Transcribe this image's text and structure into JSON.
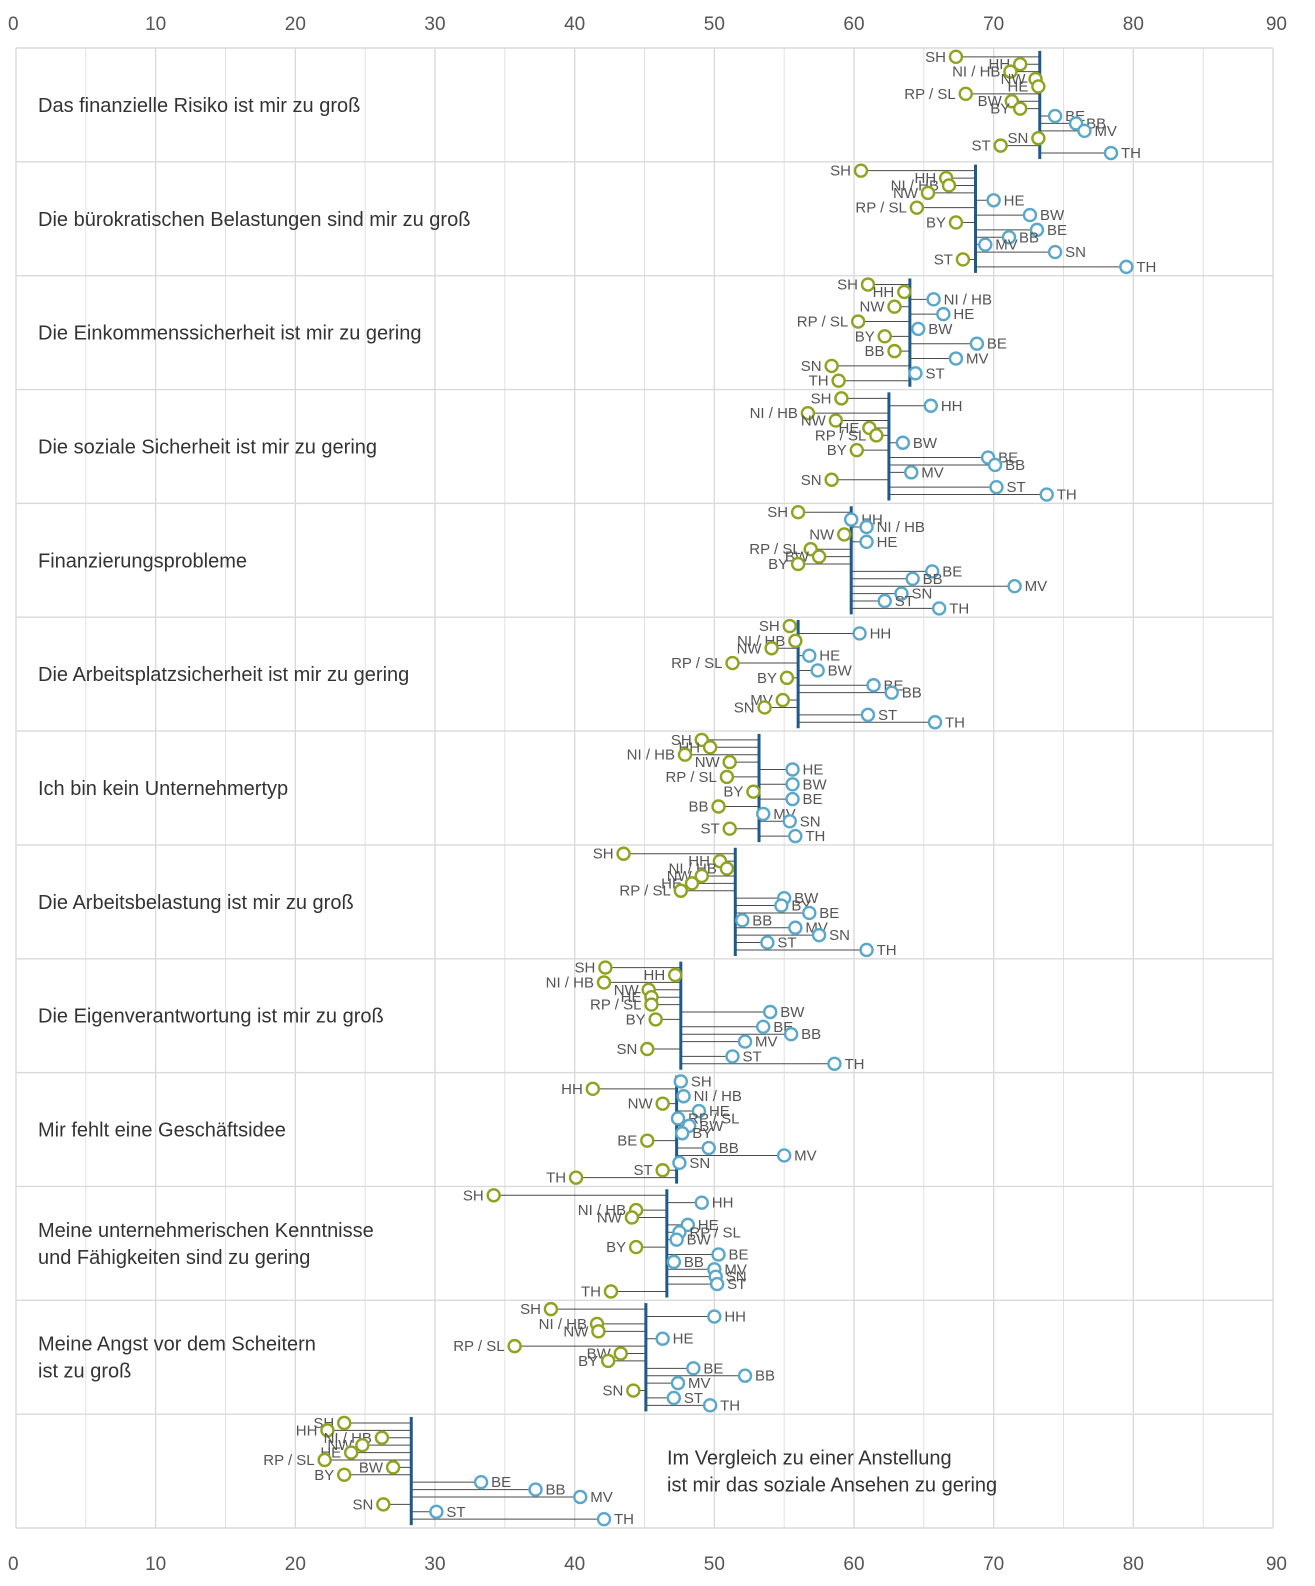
{
  "chart_data": {
    "type": "scatter",
    "xlim": [
      0,
      90
    ],
    "x_ticks": [
      0,
      10,
      20,
      30,
      40,
      50,
      60,
      70,
      80,
      90
    ],
    "grid": true,
    "colors": {
      "below": "#8FA31E",
      "above": "#5AA7CC",
      "mean_line": "#1E5A8A",
      "stems": "#4A4A4A",
      "grid": "#DADADA"
    },
    "groups": [
      {
        "label": [
          "Das finanzielle Risiko ist mir zu groß"
        ],
        "mean": 73.3,
        "points": [
          {
            "state": "SH",
            "value": 67.3
          },
          {
            "state": "HH",
            "value": 71.9
          },
          {
            "state": "NI / HB",
            "value": 71.2
          },
          {
            "state": "NW",
            "value": 73.0
          },
          {
            "state": "HE",
            "value": 73.2
          },
          {
            "state": "RP / SL",
            "value": 68.0
          },
          {
            "state": "BW",
            "value": 71.3
          },
          {
            "state": "BY",
            "value": 71.9
          },
          {
            "state": "BE",
            "value": 74.4
          },
          {
            "state": "BB",
            "value": 75.9
          },
          {
            "state": "MV",
            "value": 76.5
          },
          {
            "state": "SN",
            "value": 73.2
          },
          {
            "state": "ST",
            "value": 70.5
          },
          {
            "state": "TH",
            "value": 78.4
          }
        ]
      },
      {
        "label": [
          "Die bürokratischen Belastungen sind mir zu groß"
        ],
        "mean": 68.7,
        "points": [
          {
            "state": "SH",
            "value": 60.5
          },
          {
            "state": "HH",
            "value": 66.6
          },
          {
            "state": "NI / HB",
            "value": 66.8
          },
          {
            "state": "NW",
            "value": 65.3
          },
          {
            "state": "HE",
            "value": 70.0
          },
          {
            "state": "RP / SL",
            "value": 64.5
          },
          {
            "state": "BW",
            "value": 72.6
          },
          {
            "state": "BY",
            "value": 67.3
          },
          {
            "state": "BE",
            "value": 73.1
          },
          {
            "state": "BB",
            "value": 71.1
          },
          {
            "state": "MV",
            "value": 69.4
          },
          {
            "state": "SN",
            "value": 74.4
          },
          {
            "state": "ST",
            "value": 67.8
          },
          {
            "state": "TH",
            "value": 79.5
          }
        ]
      },
      {
        "label": [
          "Die Einkommenssicherheit ist mir zu gering"
        ],
        "mean": 64.0,
        "points": [
          {
            "state": "SH",
            "value": 61.0
          },
          {
            "state": "HH",
            "value": 63.6
          },
          {
            "state": "NI / HB",
            "value": 65.7
          },
          {
            "state": "NW",
            "value": 62.9
          },
          {
            "state": "HE",
            "value": 66.4
          },
          {
            "state": "RP / SL",
            "value": 60.3
          },
          {
            "state": "BW",
            "value": 64.6
          },
          {
            "state": "BY",
            "value": 62.2
          },
          {
            "state": "BE",
            "value": 68.8
          },
          {
            "state": "BB",
            "value": 62.9
          },
          {
            "state": "MV",
            "value": 67.3
          },
          {
            "state": "SN",
            "value": 58.4
          },
          {
            "state": "ST",
            "value": 64.4
          },
          {
            "state": "TH",
            "value": 58.9
          }
        ]
      },
      {
        "label": [
          "Die soziale Sicherheit ist mir zu gering"
        ],
        "mean": 62.5,
        "points": [
          {
            "state": "SH",
            "value": 59.1
          },
          {
            "state": "HH",
            "value": 65.5
          },
          {
            "state": "NI / HB",
            "value": 56.7
          },
          {
            "state": "NW",
            "value": 58.7
          },
          {
            "state": "HE",
            "value": 61.1
          },
          {
            "state": "RP / SL",
            "value": 61.6
          },
          {
            "state": "BW",
            "value": 63.5
          },
          {
            "state": "BY",
            "value": 60.2
          },
          {
            "state": "BE",
            "value": 69.6
          },
          {
            "state": "BB",
            "value": 70.1
          },
          {
            "state": "MV",
            "value": 64.1
          },
          {
            "state": "SN",
            "value": 58.4
          },
          {
            "state": "ST",
            "value": 70.2
          },
          {
            "state": "TH",
            "value": 73.8
          }
        ]
      },
      {
        "label": [
          "Finanzierungsprobleme"
        ],
        "mean": 59.8,
        "points": [
          {
            "state": "SH",
            "value": 56.0
          },
          {
            "state": "HH",
            "value": 59.8
          },
          {
            "state": "NI / HB",
            "value": 60.9
          },
          {
            "state": "NW",
            "value": 59.3
          },
          {
            "state": "HE",
            "value": 60.9
          },
          {
            "state": "RP / SL",
            "value": 56.9
          },
          {
            "state": "BW",
            "value": 57.5
          },
          {
            "state": "BY",
            "value": 56.0
          },
          {
            "state": "BE",
            "value": 65.6
          },
          {
            "state": "BB",
            "value": 64.2
          },
          {
            "state": "MV",
            "value": 71.5
          },
          {
            "state": "SN",
            "value": 63.4
          },
          {
            "state": "ST",
            "value": 62.2
          },
          {
            "state": "TH",
            "value": 66.1
          }
        ]
      },
      {
        "label": [
          "Die Arbeitsplatzsicherheit ist mir zu gering"
        ],
        "mean": 56.0,
        "points": [
          {
            "state": "SH",
            "value": 55.4
          },
          {
            "state": "HH",
            "value": 60.4
          },
          {
            "state": "NI / HB",
            "value": 55.8
          },
          {
            "state": "NW",
            "value": 54.1
          },
          {
            "state": "HE",
            "value": 56.8
          },
          {
            "state": "RP / SL",
            "value": 51.3
          },
          {
            "state": "BW",
            "value": 57.4
          },
          {
            "state": "BY",
            "value": 55.2
          },
          {
            "state": "BE",
            "value": 61.4
          },
          {
            "state": "BB",
            "value": 62.7
          },
          {
            "state": "MV",
            "value": 54.9
          },
          {
            "state": "SN",
            "value": 53.6
          },
          {
            "state": "ST",
            "value": 61.0
          },
          {
            "state": "TH",
            "value": 65.8
          }
        ]
      },
      {
        "label": [
          "Ich bin kein Unternehmertyp"
        ],
        "mean": 53.2,
        "points": [
          {
            "state": "SH",
            "value": 49.1
          },
          {
            "state": "HH",
            "value": 49.7
          },
          {
            "state": "NI / HB",
            "value": 47.9
          },
          {
            "state": "NW",
            "value": 51.1
          },
          {
            "state": "HE",
            "value": 55.6
          },
          {
            "state": "RP / SL",
            "value": 50.9
          },
          {
            "state": "BW",
            "value": 55.6
          },
          {
            "state": "BY",
            "value": 52.8
          },
          {
            "state": "BE",
            "value": 55.6
          },
          {
            "state": "BB",
            "value": 50.3
          },
          {
            "state": "MV",
            "value": 53.5
          },
          {
            "state": "SN",
            "value": 55.4
          },
          {
            "state": "ST",
            "value": 51.1
          },
          {
            "state": "TH",
            "value": 55.8
          }
        ]
      },
      {
        "label": [
          "Die Arbeitsbelastung ist mir zu groß"
        ],
        "mean": 51.5,
        "points": [
          {
            "state": "SH",
            "value": 43.5
          },
          {
            "state": "HH",
            "value": 50.4
          },
          {
            "state": "NI / HB",
            "value": 50.9
          },
          {
            "state": "NW",
            "value": 49.1
          },
          {
            "state": "HE",
            "value": 48.4
          },
          {
            "state": "RP / SL",
            "value": 47.6
          },
          {
            "state": "BW",
            "value": 55.0
          },
          {
            "state": "BY",
            "value": 54.8
          },
          {
            "state": "BE",
            "value": 56.8
          },
          {
            "state": "BB",
            "value": 52.0
          },
          {
            "state": "MV",
            "value": 55.8
          },
          {
            "state": "SN",
            "value": 57.5
          },
          {
            "state": "ST",
            "value": 53.8
          },
          {
            "state": "TH",
            "value": 60.9
          }
        ]
      },
      {
        "label": [
          "Die Eigenverantwortung ist mir zu groß"
        ],
        "mean": 47.6,
        "points": [
          {
            "state": "SH",
            "value": 42.2
          },
          {
            "state": "HH",
            "value": 47.2
          },
          {
            "state": "NI / HB",
            "value": 42.1
          },
          {
            "state": "NW",
            "value": 45.3
          },
          {
            "state": "HE",
            "value": 45.5
          },
          {
            "state": "RP / SL",
            "value": 45.5
          },
          {
            "state": "BW",
            "value": 54.0
          },
          {
            "state": "BY",
            "value": 45.8
          },
          {
            "state": "BE",
            "value": 53.5
          },
          {
            "state": "BB",
            "value": 55.5
          },
          {
            "state": "MV",
            "value": 52.2
          },
          {
            "state": "SN",
            "value": 45.2
          },
          {
            "state": "ST",
            "value": 51.3
          },
          {
            "state": "TH",
            "value": 58.6
          }
        ]
      },
      {
        "label": [
          "Mir fehlt eine Geschäftsidee"
        ],
        "mean": 47.3,
        "points": [
          {
            "state": "SH",
            "value": 47.6
          },
          {
            "state": "HH",
            "value": 41.3
          },
          {
            "state": "NI / HB",
            "value": 47.8
          },
          {
            "state": "NW",
            "value": 46.3
          },
          {
            "state": "HE",
            "value": 48.9
          },
          {
            "state": "RP / SL",
            "value": 47.4
          },
          {
            "state": "BW",
            "value": 48.2
          },
          {
            "state": "BY",
            "value": 47.7
          },
          {
            "state": "BE",
            "value": 45.2
          },
          {
            "state": "BB",
            "value": 49.6
          },
          {
            "state": "MV",
            "value": 55.0
          },
          {
            "state": "SN",
            "value": 47.5
          },
          {
            "state": "ST",
            "value": 46.3
          },
          {
            "state": "TH",
            "value": 40.1
          }
        ]
      },
      {
        "label": [
          "Meine unternehmerischen Kenntnisse",
          "und Fähigkeiten sind zu gering"
        ],
        "mean": 46.6,
        "points": [
          {
            "state": "SH",
            "value": 34.2
          },
          {
            "state": "HH",
            "value": 49.1
          },
          {
            "state": "NI / HB",
            "value": 44.4
          },
          {
            "state": "NW",
            "value": 44.1
          },
          {
            "state": "HE",
            "value": 48.1
          },
          {
            "state": "RP / SL",
            "value": 47.5
          },
          {
            "state": "BW",
            "value": 47.3
          },
          {
            "state": "BY",
            "value": 44.4
          },
          {
            "state": "BE",
            "value": 50.3
          },
          {
            "state": "BB",
            "value": 47.1
          },
          {
            "state": "MV",
            "value": 50.0
          },
          {
            "state": "SN",
            "value": 50.1
          },
          {
            "state": "ST",
            "value": 50.2
          },
          {
            "state": "TH",
            "value": 42.6
          }
        ]
      },
      {
        "label": [
          "Meine Angst vor dem Scheitern",
          "ist zu groß"
        ],
        "mean": 45.1,
        "points": [
          {
            "state": "SH",
            "value": 38.3
          },
          {
            "state": "HH",
            "value": 50.0
          },
          {
            "state": "NI / HB",
            "value": 41.6
          },
          {
            "state": "NW",
            "value": 41.7
          },
          {
            "state": "HE",
            "value": 46.3
          },
          {
            "state": "RP / SL",
            "value": 35.7
          },
          {
            "state": "BW",
            "value": 43.3
          },
          {
            "state": "BY",
            "value": 42.4
          },
          {
            "state": "BE",
            "value": 48.5
          },
          {
            "state": "BB",
            "value": 52.2
          },
          {
            "state": "MV",
            "value": 47.4
          },
          {
            "state": "SN",
            "value": 44.2
          },
          {
            "state": "ST",
            "value": 47.1
          },
          {
            "state": "TH",
            "value": 49.7
          }
        ]
      },
      {
        "label": [
          "Im Vergleich zu einer Anstellung",
          "ist mir das soziale Ansehen zu gering"
        ],
        "label_position": "inside-right",
        "mean": 28.3,
        "points": [
          {
            "state": "SH",
            "value": 23.5
          },
          {
            "state": "HH",
            "value": 22.3
          },
          {
            "state": "NI / HB",
            "value": 26.2
          },
          {
            "state": "NW",
            "value": 24.8
          },
          {
            "state": "HE",
            "value": 24.0
          },
          {
            "state": "RP / SL",
            "value": 22.1
          },
          {
            "state": "BW",
            "value": 27.0
          },
          {
            "state": "BY",
            "value": 23.5
          },
          {
            "state": "BE",
            "value": 33.3
          },
          {
            "state": "BB",
            "value": 37.2
          },
          {
            "state": "MV",
            "value": 40.4
          },
          {
            "state": "SN",
            "value": 26.3
          },
          {
            "state": "ST",
            "value": 30.1
          },
          {
            "state": "TH",
            "value": 42.1
          }
        ]
      }
    ]
  }
}
